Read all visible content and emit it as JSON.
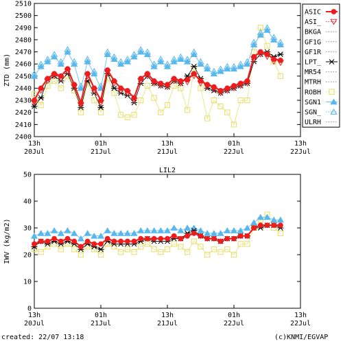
{
  "footer": {
    "created": "created: 22/07 13:18",
    "credit": "(c)KNMI/EGVAP"
  },
  "colors": {
    "ASIC": "#ee1c1c",
    "ASI_": "#d93a3a",
    "LPT_": "#000000",
    "ROBH": "#e8e070",
    "SGN1": "#58b8ee",
    "SGN_": "#58b8ee",
    "dotted": "#888888"
  },
  "chart_data": [
    {
      "type": "line",
      "title": "",
      "xlabel": "",
      "ylabel": "ZTD (mm)",
      "xlim": [
        0,
        1
      ],
      "ylim": [
        2400,
        2510
      ],
      "yticks": [
        2400,
        2410,
        2420,
        2430,
        2440,
        2450,
        2460,
        2470,
        2480,
        2490,
        2500,
        2510
      ],
      "xticks": [
        {
          "pos": 0.0,
          "top": "13h",
          "bottom": "20Jul"
        },
        {
          "pos": 0.25,
          "top": "01h",
          "bottom": "21Jul"
        },
        {
          "pos": 0.5,
          "top": "13h",
          "bottom": "21Jul"
        },
        {
          "pos": 0.75,
          "top": "01h",
          "bottom": "22Jul"
        },
        {
          "pos": 1.0,
          "top": "13h",
          "bottom": "22Jul"
        }
      ],
      "legend_position": "right",
      "legend": [
        {
          "name": "ASIC",
          "style": "filled-circle-line"
        },
        {
          "name": "ASI_",
          "style": "open-triangle-down"
        },
        {
          "name": "BKGA",
          "style": "dotted"
        },
        {
          "name": "GF1G",
          "style": "dotted"
        },
        {
          "name": "GF1R",
          "style": "dotted"
        },
        {
          "name": "LPT_",
          "style": "star"
        },
        {
          "name": "MR54",
          "style": "dotted"
        },
        {
          "name": "MTRH",
          "style": "dotted"
        },
        {
          "name": "ROBH",
          "style": "open-square"
        },
        {
          "name": "SGN1",
          "style": "filled-triangle-up"
        },
        {
          "name": "SGN_",
          "style": "open-triangle-up"
        },
        {
          "name": "ULRH",
          "style": "dotted"
        }
      ],
      "x": [
        0.0,
        0.025,
        0.05,
        0.075,
        0.1,
        0.125,
        0.15,
        0.175,
        0.2,
        0.225,
        0.25,
        0.275,
        0.3,
        0.325,
        0.35,
        0.375,
        0.4,
        0.425,
        0.45,
        0.475,
        0.5,
        0.525,
        0.55,
        0.575,
        0.6,
        0.625,
        0.65,
        0.675,
        0.7,
        0.725,
        0.75,
        0.775,
        0.8,
        0.825,
        0.85,
        0.875,
        0.9,
        0.925
      ],
      "series": [
        {
          "name": "ASIC",
          "values": [
            2430,
            2440,
            2448,
            2452,
            2450,
            2456,
            2443,
            2428,
            2452,
            2440,
            2430,
            2455,
            2446,
            2440,
            2438,
            2432,
            2448,
            2452,
            2446,
            2444,
            2443,
            2448,
            2446,
            2447,
            2452,
            2446,
            2443,
            2441,
            2438,
            2440,
            2442,
            2444,
            2446,
            2466,
            2470,
            2468,
            2464,
            2463
          ]
        },
        {
          "name": "ASI_",
          "values": [
            2428,
            2438,
            2446,
            2450,
            2448,
            2454,
            2441,
            2426,
            2450,
            2438,
            2428,
            2453,
            2444,
            2438,
            2436,
            2430,
            2446,
            2450,
            2444,
            2442,
            2441,
            2446,
            2444,
            2445,
            2450,
            2444,
            2441,
            2439,
            2436,
            2438,
            2440,
            2442,
            2444,
            2464,
            2468,
            2466,
            2462,
            2461
          ]
        },
        {
          "name": "LPT_",
          "values": [
            2425,
            2432,
            2447,
            2450,
            2446,
            2452,
            2440,
            2424,
            2446,
            2436,
            2424,
            2452,
            2440,
            2436,
            2434,
            2428,
            2444,
            2450,
            2444,
            2442,
            2441,
            2446,
            2444,
            2450,
            2458,
            2448,
            2440,
            2438,
            2436,
            2438,
            2440,
            2442,
            2444,
            2462,
            2468,
            2470,
            2466,
            2468
          ]
        },
        {
          "name": "ROBH",
          "values": [
            2435,
            2426,
            2442,
            2446,
            2440,
            2450,
            2438,
            2420,
            2444,
            2430,
            2420,
            2448,
            2436,
            2418,
            2416,
            2418,
            2430,
            2442,
            2432,
            2420,
            2426,
            2442,
            2440,
            2422,
            2456,
            2440,
            2415,
            2430,
            2425,
            2420,
            2410,
            2430,
            2430,
            2470,
            2490,
            2475,
            2462,
            2450
          ]
        },
        {
          "name": "SGN1",
          "values": [
            2450,
            2458,
            2462,
            2466,
            2460,
            2470,
            2460,
            2440,
            2462,
            2452,
            2440,
            2468,
            2464,
            2460,
            2462,
            2466,
            2470,
            2468,
            2458,
            2462,
            2458,
            2462,
            2464,
            2462,
            2468,
            2460,
            2456,
            2452,
            2454,
            2456,
            2456,
            2458,
            2460,
            2476,
            2484,
            2488,
            2480,
            2476
          ]
        },
        {
          "name": "SGN_",
          "values": [
            2452,
            2460,
            2464,
            2468,
            2462,
            2472,
            2462,
            2442,
            2464,
            2454,
            2442,
            2470,
            2466,
            2462,
            2464,
            2468,
            2472,
            2470,
            2460,
            2464,
            2460,
            2464,
            2466,
            2464,
            2470,
            2462,
            2458,
            2454,
            2456,
            2458,
            2458,
            2460,
            2462,
            2478,
            2486,
            2490,
            2482,
            2478
          ]
        }
      ]
    },
    {
      "type": "line",
      "title": "LIL2",
      "xlabel": "",
      "ylabel": "IWV (kg/m2)",
      "xlim": [
        0,
        1
      ],
      "ylim": [
        0,
        50
      ],
      "yticks": [
        0,
        10,
        20,
        30,
        40,
        50
      ],
      "xticks": [
        {
          "pos": 0.0,
          "top": "13h",
          "bottom": "20Jul"
        },
        {
          "pos": 0.25,
          "top": "01h",
          "bottom": "21Jul"
        },
        {
          "pos": 0.5,
          "top": "13h",
          "bottom": "21Jul"
        },
        {
          "pos": 0.75,
          "top": "01h",
          "bottom": "22Jul"
        },
        {
          "pos": 1.0,
          "top": "13h",
          "bottom": "22Jul"
        }
      ],
      "x": [
        0.0,
        0.025,
        0.05,
        0.075,
        0.1,
        0.125,
        0.15,
        0.175,
        0.2,
        0.225,
        0.25,
        0.275,
        0.3,
        0.325,
        0.35,
        0.375,
        0.4,
        0.425,
        0.45,
        0.475,
        0.5,
        0.525,
        0.55,
        0.575,
        0.6,
        0.625,
        0.65,
        0.675,
        0.7,
        0.725,
        0.75,
        0.775,
        0.8,
        0.825,
        0.85,
        0.875,
        0.9,
        0.925
      ],
      "series": [
        {
          "name": "ASIC",
          "values": [
            24,
            25,
            25,
            26,
            25,
            26,
            25,
            23,
            25,
            24,
            24,
            26,
            25,
            25,
            25,
            25,
            26,
            26,
            26,
            26,
            26,
            27,
            26,
            27,
            28,
            27,
            26,
            26,
            25,
            26,
            26,
            27,
            27,
            30,
            31,
            31,
            31,
            31
          ]
        },
        {
          "name": "LPT_",
          "values": [
            23,
            25,
            24,
            25,
            24,
            25,
            24,
            22,
            24,
            23,
            22,
            25,
            24,
            24,
            24,
            24,
            25,
            26,
            25,
            25,
            25,
            26,
            26,
            28,
            29,
            27,
            26,
            26,
            25,
            26,
            26,
            27,
            27,
            30,
            30,
            31,
            31,
            30
          ]
        },
        {
          "name": "ROBH",
          "values": [
            22,
            21,
            23,
            24,
            22,
            24,
            22,
            20,
            23,
            22,
            20,
            24,
            23,
            21,
            22,
            21,
            23,
            24,
            22,
            21,
            22,
            24,
            23,
            21,
            25,
            23,
            20,
            22,
            21,
            22,
            20,
            24,
            24,
            30,
            33,
            35,
            30,
            28
          ]
        },
        {
          "name": "SGN1",
          "values": [
            27,
            28,
            28,
            29,
            28,
            29,
            28,
            26,
            28,
            27,
            27,
            29,
            28,
            28,
            28,
            28,
            29,
            29,
            29,
            29,
            29,
            30,
            29,
            30,
            30,
            29,
            28,
            28,
            28,
            29,
            29,
            29,
            30,
            32,
            34,
            34,
            33,
            33
          ]
        }
      ]
    }
  ]
}
